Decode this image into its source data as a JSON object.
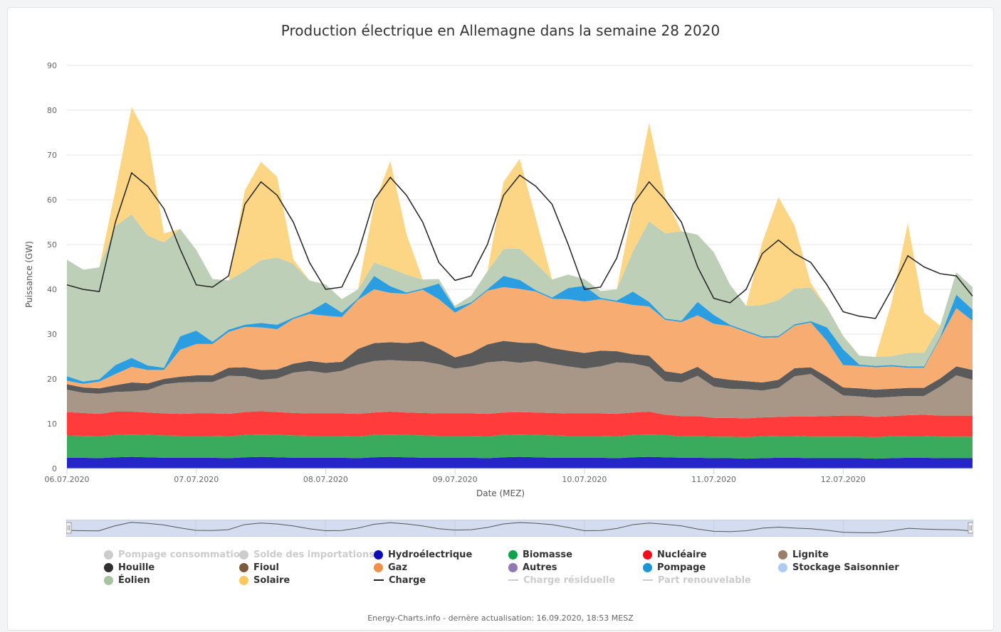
{
  "chart_data": {
    "type": "area",
    "title": "Production électrique en Allemagne dans la semaine 28 2020",
    "xlabel": "Date (MEZ)",
    "ylabel": "Puissance (GW)",
    "ylim": [
      0,
      90
    ],
    "yticks": [
      0,
      10,
      20,
      30,
      40,
      50,
      60,
      70,
      80,
      90
    ],
    "x_ticks": [
      "06.07.2020",
      "07.07.2020",
      "08.07.2020",
      "09.07.2020",
      "10.07.2020",
      "11.07.2020",
      "12.07.2020"
    ],
    "grid": true,
    "legend_position": "bottom",
    "stacked": true,
    "x_hours": [
      0,
      3,
      6,
      9,
      12,
      15,
      18,
      21,
      24,
      27,
      30,
      33,
      36,
      39,
      42,
      45,
      48,
      51,
      54,
      57,
      60,
      63,
      66,
      69,
      72,
      75,
      78,
      81,
      84,
      87,
      90,
      93,
      96,
      99,
      102,
      105,
      108,
      111,
      114,
      117,
      120,
      123,
      126,
      129,
      132,
      135,
      138,
      141,
      144,
      147,
      150,
      153,
      156,
      159,
      162,
      165,
      168
    ],
    "series": [
      {
        "name": "Hydroélectrique",
        "color": "#2525c8",
        "values": [
          2.4,
          2.4,
          2.3,
          2.5,
          2.6,
          2.5,
          2.4,
          2.4,
          2.4,
          2.4,
          2.3,
          2.5,
          2.6,
          2.5,
          2.4,
          2.4,
          2.4,
          2.4,
          2.3,
          2.5,
          2.6,
          2.5,
          2.4,
          2.4,
          2.4,
          2.4,
          2.3,
          2.5,
          2.6,
          2.5,
          2.4,
          2.4,
          2.4,
          2.4,
          2.3,
          2.5,
          2.6,
          2.5,
          2.4,
          2.4,
          2.3,
          2.3,
          2.2,
          2.3,
          2.4,
          2.4,
          2.3,
          2.3,
          2.3,
          2.3,
          2.2,
          2.3,
          2.4,
          2.4,
          2.3,
          2.3,
          2.3
        ]
      },
      {
        "name": "Biomasse",
        "color": "#3aaa5c",
        "values": [
          5.0,
          4.9,
          4.9,
          5.0,
          5.0,
          5.0,
          5.0,
          4.9,
          4.9,
          4.9,
          4.9,
          5.0,
          5.0,
          5.0,
          5.0,
          4.9,
          4.9,
          4.9,
          4.9,
          5.0,
          5.0,
          5.0,
          5.0,
          4.9,
          4.9,
          4.9,
          4.9,
          5.0,
          5.0,
          5.0,
          5.0,
          4.9,
          4.9,
          4.9,
          4.9,
          5.0,
          5.0,
          5.0,
          4.8,
          4.8,
          4.8,
          4.8,
          4.8,
          4.9,
          4.9,
          4.9,
          4.8,
          4.8,
          4.8,
          4.8,
          4.8,
          4.9,
          4.9,
          4.9,
          4.8,
          4.8,
          4.8
        ]
      },
      {
        "name": "Nucléaire",
        "color": "#ff3b3b",
        "values": [
          5.2,
          5.1,
          5.0,
          5.2,
          5.1,
          5.0,
          4.9,
          4.9,
          5.0,
          5.0,
          5.0,
          5.1,
          5.2,
          5.1,
          5.0,
          5.0,
          5.0,
          5.0,
          5.0,
          5.0,
          5.1,
          5.0,
          5.0,
          5.0,
          5.0,
          5.0,
          5.0,
          5.0,
          5.0,
          5.0,
          5.0,
          5.0,
          5.0,
          5.0,
          5.0,
          5.0,
          5.1,
          4.5,
          4.5,
          4.5,
          4.2,
          4.2,
          4.2,
          4.2,
          4.2,
          4.3,
          4.5,
          4.6,
          4.7,
          4.7,
          4.5,
          4.5,
          4.6,
          4.7,
          4.7,
          4.7,
          4.7
        ]
      },
      {
        "name": "Lignite",
        "color": "#a89787",
        "values": [
          5.0,
          4.5,
          4.5,
          4.4,
          4.5,
          5.0,
          6.5,
          7.0,
          7.0,
          7.0,
          8.5,
          8.0,
          7.0,
          7.5,
          9.0,
          9.5,
          9.0,
          9.5,
          11.0,
          11.5,
          11.5,
          11.5,
          11.5,
          11.0,
          10.0,
          10.5,
          11.5,
          11.5,
          11.0,
          11.5,
          11.0,
          10.5,
          10.0,
          10.5,
          11.5,
          11.0,
          10.0,
          7.5,
          7.5,
          9.0,
          7.0,
          6.5,
          6.5,
          6.0,
          6.5,
          9.0,
          9.5,
          7.0,
          4.5,
          4.3,
          4.3,
          4.3,
          4.3,
          4.2,
          6.5,
          9.0,
          8.0
        ]
      },
      {
        "name": "Houille",
        "color": "#5a5a5a",
        "values": [
          1.2,
          1.2,
          1.2,
          1.5,
          2.0,
          1.5,
          1.2,
          1.3,
          1.5,
          1.5,
          1.8,
          2.0,
          2.2,
          2.0,
          2.0,
          2.2,
          2.3,
          2.0,
          3.5,
          4.0,
          4.0,
          4.0,
          4.5,
          3.5,
          2.5,
          3.0,
          4.0,
          4.5,
          4.5,
          4.0,
          3.5,
          3.5,
          3.5,
          3.5,
          2.5,
          2.0,
          2.5,
          2.2,
          2.0,
          2.0,
          2.0,
          2.0,
          1.8,
          1.8,
          1.8,
          1.8,
          1.5,
          1.8,
          1.8,
          1.8,
          1.8,
          1.8,
          1.8,
          1.8,
          1.8,
          2.0,
          2.2
        ]
      },
      {
        "name": "Gaz",
        "color": "#f7ad72",
        "values": [
          0.8,
          0.8,
          1.5,
          2.5,
          3.5,
          3.0,
          2.0,
          6.0,
          7.0,
          7.0,
          8.0,
          9.0,
          9.5,
          9.0,
          10.0,
          10.5,
          10.5,
          10.0,
          11.0,
          12.0,
          11.0,
          11.0,
          11.5,
          11.0,
          10.0,
          11.0,
          12.0,
          12.0,
          12.0,
          11.5,
          11.0,
          11.5,
          11.5,
          11.5,
          11.0,
          11.0,
          11.0,
          11.5,
          11.5,
          11.5,
          12.0,
          12.0,
          11.0,
          10.0,
          9.5,
          9.5,
          10.0,
          8.0,
          5.0,
          5.0,
          5.0,
          5.0,
          4.5,
          4.5,
          9.0,
          13.0,
          11.0
        ]
      },
      {
        "name": "Pompage",
        "color": "#2a9ee0",
        "values": [
          1.0,
          0.5,
          0.5,
          2.0,
          2.0,
          1.0,
          0.5,
          3.0,
          3.0,
          0.5,
          0.5,
          0.5,
          1.0,
          1.0,
          0.3,
          0.5,
          3.0,
          1.0,
          0.3,
          3.0,
          1.5,
          0.3,
          0.3,
          3.5,
          1.0,
          0.3,
          0.3,
          2.5,
          2.0,
          0.3,
          0.3,
          2.5,
          3.5,
          0.3,
          0.3,
          3.0,
          1.0,
          0.3,
          0.3,
          3.0,
          2.0,
          0.3,
          0.3,
          0.3,
          0.3,
          0.3,
          0.3,
          3.0,
          3.5,
          0.3,
          0.3,
          0.3,
          0.3,
          0.3,
          0.3,
          3.0,
          2.5
        ]
      },
      {
        "name": "Éolien",
        "color": "#bdcfb6",
        "values": [
          26.0,
          25.0,
          25.0,
          31.0,
          32.0,
          29.0,
          28.0,
          24.0,
          18.0,
          14.0,
          11.0,
          12.0,
          14.0,
          15.0,
          12.0,
          7.0,
          4.0,
          3.0,
          2.0,
          3.0,
          4.0,
          4.0,
          2.0,
          1.0,
          0.5,
          1.5,
          4.0,
          6.0,
          7.0,
          6.0,
          4.0,
          3.0,
          1.5,
          1.5,
          2.5,
          9.0,
          18.0,
          19.0,
          20.0,
          15.0,
          14.0,
          9.0,
          5.5,
          7.0,
          8.0,
          8.0,
          7.5,
          4.5,
          3.0,
          2.0,
          2.0,
          2.0,
          3.0,
          3.0,
          2.5,
          5.0,
          5.0
        ]
      },
      {
        "name": "Solaire",
        "color": "#fdd685",
        "values": [
          0,
          0,
          0,
          8.0,
          24.0,
          22.0,
          2.0,
          0,
          0,
          0,
          0,
          18.0,
          22.0,
          18.0,
          1.0,
          0,
          0,
          0,
          0,
          13.0,
          24.0,
          9.0,
          0,
          0,
          0,
          0,
          0,
          15.0,
          20.0,
          10.0,
          0,
          0,
          0,
          0,
          0,
          10.0,
          22.0,
          8.0,
          0,
          0,
          0,
          0,
          0,
          14.0,
          23.0,
          14.0,
          1.0,
          0,
          0,
          0,
          0,
          12.0,
          29.0,
          9.0,
          0,
          0,
          0
        ]
      },
      {
        "name": "Charge",
        "color": "#222222",
        "type": "line",
        "values": [
          41.0,
          40.0,
          39.5,
          55.0,
          66.0,
          63.0,
          58.0,
          49.0,
          41.0,
          40.5,
          43.0,
          59.0,
          64.0,
          61.0,
          55.0,
          46.0,
          40.0,
          40.5,
          48.0,
          60.0,
          65.0,
          61.0,
          55.0,
          46.0,
          42.0,
          43.0,
          50.0,
          61.0,
          65.5,
          63.0,
          59.0,
          50.0,
          40.0,
          40.5,
          47.0,
          59.0,
          64.0,
          60.0,
          55.0,
          45.0,
          38.0,
          37.0,
          40.0,
          48.0,
          51.0,
          48.0,
          46.0,
          41.0,
          35.0,
          34.0,
          33.5,
          40.0,
          47.5,
          45.0,
          43.5,
          43.0,
          38.5
        ]
      }
    ],
    "legend": [
      {
        "name": "Pompage consommation",
        "color": "#cccccc",
        "marker": "dot",
        "active": false
      },
      {
        "name": "Solde des importations",
        "color": "#cccccc",
        "marker": "dot",
        "active": false
      },
      {
        "name": "Hydroélectrique",
        "color": "#0b0bbb",
        "marker": "dot",
        "active": true
      },
      {
        "name": "Biomasse",
        "color": "#10a24a",
        "marker": "dot",
        "active": true
      },
      {
        "name": "Nucléaire",
        "color": "#f10c1c",
        "marker": "dot",
        "active": true
      },
      {
        "name": "Lignite",
        "color": "#9a7d6b",
        "marker": "dot",
        "active": true
      },
      {
        "name": "Houille",
        "color": "#303030",
        "marker": "dot",
        "active": true
      },
      {
        "name": "Fioul",
        "color": "#7d5a3c",
        "marker": "dot",
        "active": true
      },
      {
        "name": "Gaz",
        "color": "#f48f4a",
        "marker": "dot",
        "active": true
      },
      {
        "name": "Autres",
        "color": "#9078b0",
        "marker": "dot",
        "active": true
      },
      {
        "name": "Pompage",
        "color": "#1c95d6",
        "marker": "dot",
        "active": true
      },
      {
        "name": "Stockage Saisonnier",
        "color": "#aecbf5",
        "marker": "dot",
        "active": true
      },
      {
        "name": "Éolien",
        "color": "#a6c4a0",
        "marker": "dot",
        "active": true
      },
      {
        "name": "Solaire",
        "color": "#fdc95c",
        "marker": "dot",
        "active": true
      },
      {
        "name": "Charge",
        "color": "#222222",
        "marker": "line",
        "active": true
      },
      {
        "name": "Charge résiduelle",
        "color": "#cccccc",
        "marker": "line",
        "active": false
      },
      {
        "name": "Part renouvelable",
        "color": "#cccccc",
        "marker": "line",
        "active": false
      }
    ]
  },
  "credits": "Energy-Charts.info - dernère actualisation: 16.09.2020, 18:53 MESZ"
}
